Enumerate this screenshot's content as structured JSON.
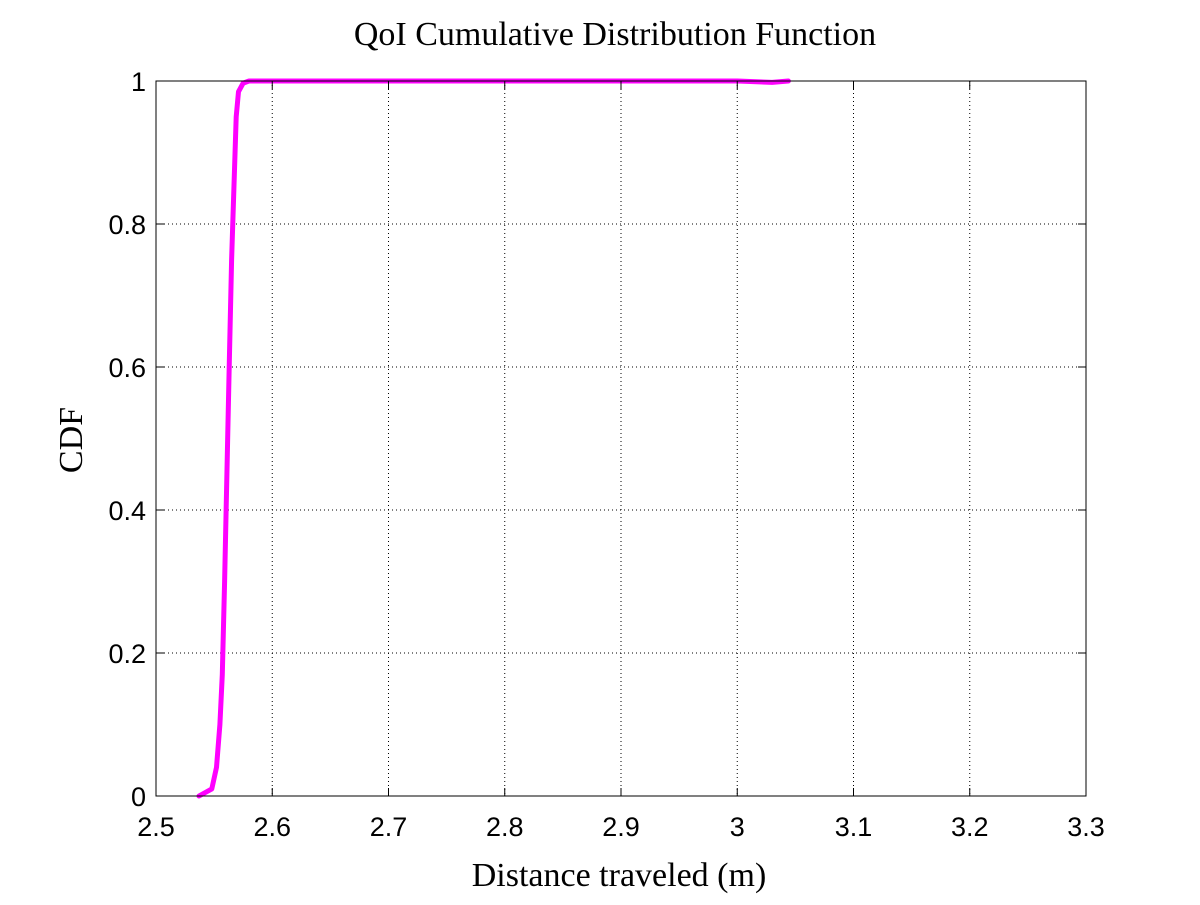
{
  "chart_data": {
    "type": "line",
    "title": "QoI Cumulative Distribution Function",
    "xlabel": "Distance traveled (m)",
    "ylabel": "CDF",
    "xlim": [
      2.5,
      3.3
    ],
    "ylim": [
      0,
      1
    ],
    "x_ticks": [
      2.5,
      2.6,
      2.7,
      2.8,
      2.9,
      3.0,
      3.1,
      3.2,
      3.3
    ],
    "x_tick_labels": [
      "2.5",
      "2.6",
      "2.7",
      "2.8",
      "2.9",
      "3",
      "3.1",
      "3.2",
      "3.3"
    ],
    "y_ticks": [
      0,
      0.2,
      0.4,
      0.6,
      0.8,
      1.0
    ],
    "y_tick_labels": [
      "0",
      "0.2",
      "0.4",
      "0.6",
      "0.8",
      "1"
    ],
    "grid": true,
    "series": [
      {
        "color": "#ff00ff",
        "x": [
          2.537,
          2.548,
          2.552,
          2.555,
          2.557,
          2.559,
          2.561,
          2.563,
          2.565,
          2.567,
          2.569,
          2.571,
          2.575,
          2.58,
          2.6,
          3.0,
          3.03,
          3.044
        ],
        "y": [
          0,
          0.01,
          0.04,
          0.1,
          0.17,
          0.3,
          0.45,
          0.6,
          0.75,
          0.85,
          0.95,
          0.985,
          0.997,
          1.0,
          1.0,
          1.0,
          0.998,
          1.0
        ]
      }
    ]
  }
}
